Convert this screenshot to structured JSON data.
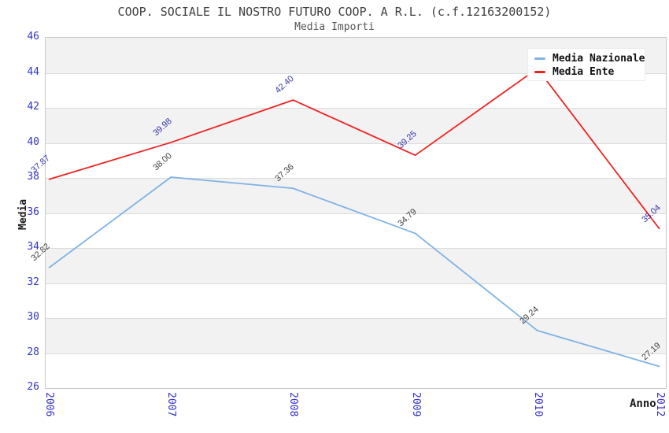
{
  "header": {
    "title": "COOP. SOCIALE IL NOSTRO FUTURO COOP. A R.L. (c.f.12163200152)",
    "subtitle": "Media Importi"
  },
  "axes": {
    "y_title": "Media",
    "x_title": "Anno",
    "tick_color": "#3333cc",
    "y_ticks": [
      46,
      44,
      42,
      40,
      38,
      36,
      34,
      32,
      30,
      28,
      26
    ],
    "x_ticks": [
      "2006",
      "2007",
      "2008",
      "2009",
      "2010",
      "2012"
    ]
  },
  "legend": {
    "items": [
      {
        "label": "Media Nazionale",
        "color": "#7fb2e5"
      },
      {
        "label": "Media Ente",
        "color": "#ee2222"
      }
    ]
  },
  "chart_data": {
    "type": "line",
    "title": "COOP. SOCIALE IL NOSTRO FUTURO COOP. A R.L. (c.f.12163200152)",
    "subtitle": "Media Importi",
    "xlabel": "Anno",
    "ylabel": "Media",
    "categories": [
      "2006",
      "2007",
      "2008",
      "2009",
      "2010",
      "2012"
    ],
    "series": [
      {
        "name": "Media Nazionale",
        "color": "#7fb2e5",
        "label_color": "#404040",
        "values": [
          32.82,
          38.0,
          37.36,
          34.79,
          29.24,
          27.19
        ],
        "labels": [
          "32.82",
          "38.00",
          "37.36",
          "34.79",
          "29.24",
          "27.19"
        ]
      },
      {
        "name": "Media Ente",
        "color": "#ee2222",
        "label_color": "#3333aa",
        "values": [
          37.87,
          39.98,
          42.4,
          39.25,
          44.2,
          35.04
        ],
        "labels": [
          "37.87",
          "39.98",
          "42.40",
          "39.25",
          "",
          "35.04"
        ]
      }
    ],
    "ylim": [
      26,
      46
    ],
    "y_tick_step": 2,
    "grid": "horizontal",
    "band_colors": [
      "#f2f2f2",
      "#ffffff"
    ],
    "legend_position": "top-right"
  }
}
